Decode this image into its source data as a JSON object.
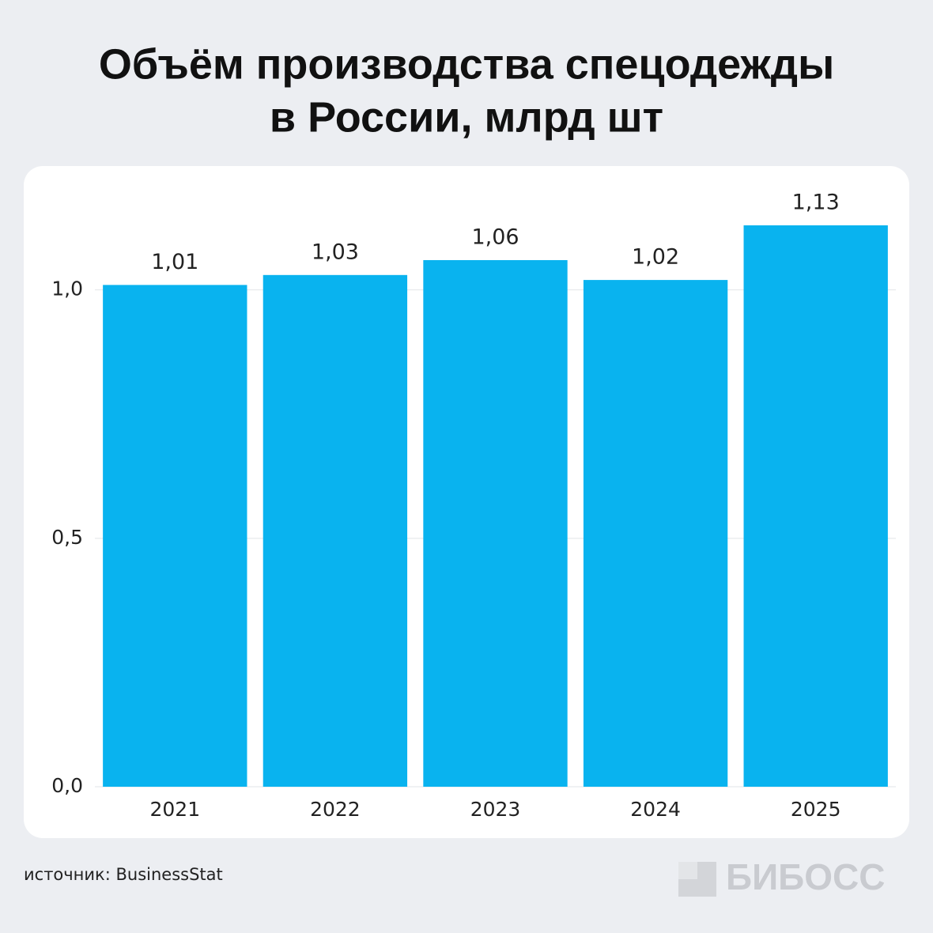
{
  "chart_data": {
    "type": "bar",
    "title": [
      "Объём производства спецодежды",
      "в России, млрд шт"
    ],
    "categories": [
      "2021",
      "2022",
      "2023",
      "2024",
      "2025"
    ],
    "values": [
      1.01,
      1.03,
      1.06,
      1.02,
      1.13
    ],
    "value_labels": [
      "1,01",
      "1,03",
      "1,06",
      "1,02",
      "1,13"
    ],
    "color": "#09b3ef",
    "ylim": [
      0,
      1.2
    ],
    "yticks": [
      {
        "value": 0,
        "label": "0,0"
      },
      {
        "value": 0.5,
        "label": "0,5"
      },
      {
        "value": 1,
        "label": "1,0"
      }
    ],
    "grid": true
  },
  "source": "источник: BusinessStat",
  "logo": "БИБОСС"
}
